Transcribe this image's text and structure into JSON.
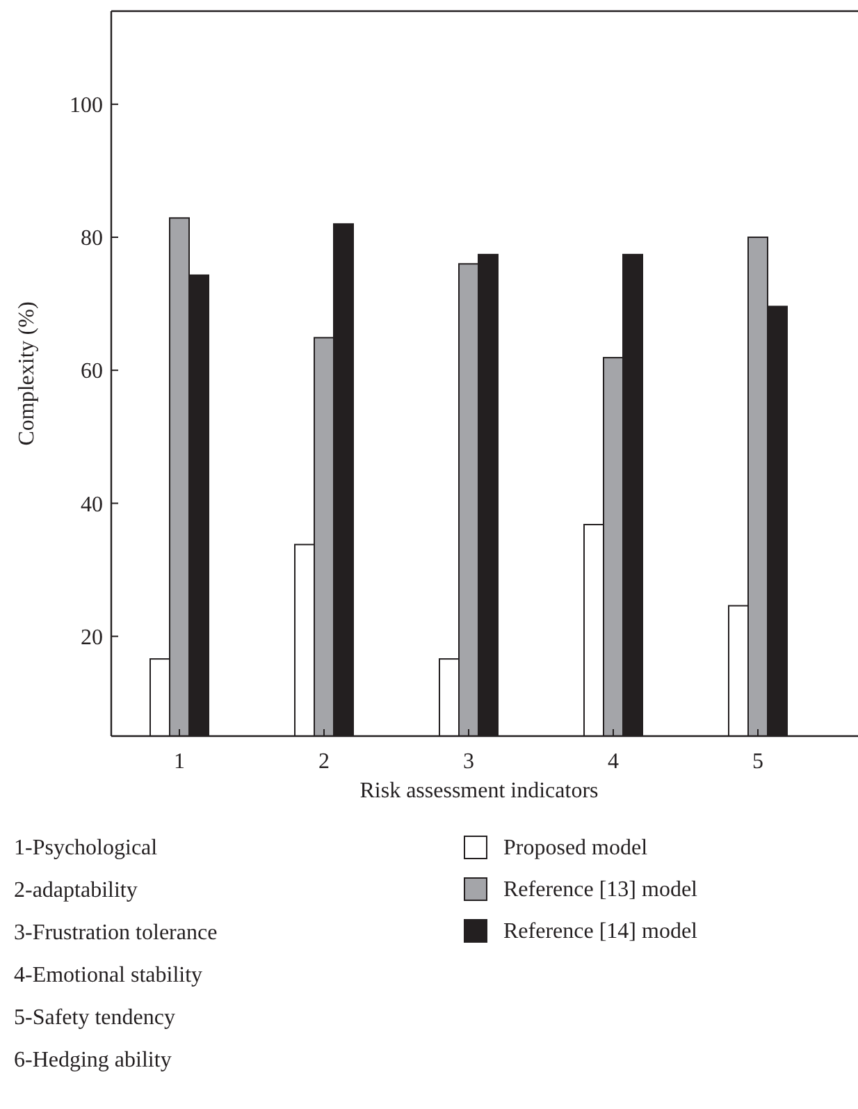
{
  "chart_data": {
    "type": "bar",
    "xlabel": "Risk assessment indicators",
    "ylabel": "Complexity (%)",
    "categories": [
      "1",
      "2",
      "3",
      "4",
      "5"
    ],
    "series": [
      {
        "name": "Proposed model",
        "color": "#ffffff",
        "values": [
          16.6,
          33.8,
          16.6,
          36.8,
          24.6
        ]
      },
      {
        "name": "Reference [13] model",
        "color": "#a4a5a9",
        "values": [
          82.9,
          64.9,
          76,
          61.9,
          80
        ]
      },
      {
        "name": "Reference [14] model",
        "color": "#231f20",
        "values": [
          74.3,
          82,
          77.4,
          77.4,
          69.6
        ]
      }
    ],
    "ylim": [
      5,
      114
    ],
    "yticks": [
      20,
      40,
      60,
      80,
      100
    ],
    "grid": false,
    "legend": "bottom",
    "annotations": [
      "1-Psychological",
      "2-adaptability",
      "3-Frustration tolerance",
      "4-Emotional stability",
      "5-Safety tendency",
      "6-Hedging ability"
    ]
  }
}
